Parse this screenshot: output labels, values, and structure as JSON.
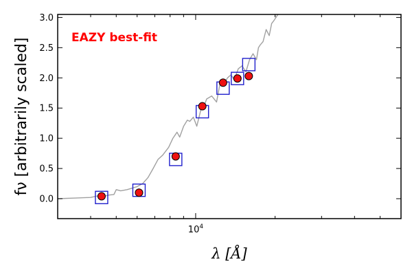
{
  "chart_data": {
    "type": "scatter",
    "title": "",
    "xlabel": "λ [Å]",
    "ylabel": "fν [arbitrarily scaled]",
    "xscale": "log",
    "xlim": [
      3000,
      60000
    ],
    "ylim": [
      -0.33,
      3.05
    ],
    "yticks": [
      0.0,
      0.5,
      1.0,
      1.5,
      2.0,
      2.5,
      3.0
    ],
    "ytick_labels": [
      "0.0",
      "0.5",
      "1.0",
      "1.5",
      "2.0",
      "2.5",
      "3.0"
    ],
    "xtick_label": {
      "base": "10",
      "exp": "4",
      "value": 10000
    },
    "grid": false,
    "annotation": {
      "text": "EAZY best-fit",
      "color": "#ff0000",
      "position": "top-left"
    },
    "colors": {
      "spectrum": "#a0a0a0",
      "model_box": "#1f1fcc",
      "observed_fill": "#ee1111",
      "observed_edge": "#000000"
    },
    "series": [
      {
        "role": "template-spectrum",
        "x": [
          3000,
          3500,
          4000,
          4300,
          4500,
          4700,
          4900,
          5000,
          5200,
          5500,
          5800,
          6000,
          6300,
          6600,
          6900,
          7200,
          7500,
          7900,
          8200,
          8500,
          8700,
          9000,
          9300,
          9500,
          9800,
          10100,
          10500,
          10800,
          11000,
          11500,
          12000,
          12300,
          12500,
          12800,
          13200,
          13600,
          14000,
          14500,
          15000,
          15500,
          16000,
          16500,
          17000,
          17300,
          17600,
          18000,
          18500,
          19000,
          19400,
          19800,
          20500
        ],
        "y": [
          0.0,
          0.01,
          0.02,
          0.05,
          0.04,
          0.06,
          0.07,
          0.15,
          0.13,
          0.15,
          0.18,
          0.2,
          0.25,
          0.35,
          0.5,
          0.65,
          0.72,
          0.85,
          1.0,
          1.1,
          1.02,
          1.2,
          1.3,
          1.28,
          1.35,
          1.2,
          1.5,
          1.55,
          1.65,
          1.7,
          1.6,
          1.85,
          1.95,
          1.9,
          2.0,
          2.05,
          1.97,
          2.15,
          2.2,
          2.1,
          2.3,
          2.4,
          2.3,
          2.5,
          2.55,
          2.6,
          2.8,
          2.7,
          2.9,
          2.95,
          3.05
        ]
      },
      {
        "role": "model-photometry",
        "marker": "square",
        "x": [
          4400,
          6100,
          8400,
          10600,
          12700,
          14400,
          15900
        ],
        "y": [
          0.02,
          0.14,
          0.65,
          1.44,
          1.83,
          1.99,
          2.22
        ]
      },
      {
        "role": "observed-photometry",
        "marker": "circle",
        "x": [
          4400,
          6100,
          8400,
          10600,
          12700,
          14400,
          15900
        ],
        "y": [
          0.04,
          0.1,
          0.7,
          1.53,
          1.92,
          1.99,
          2.03
        ]
      }
    ]
  }
}
